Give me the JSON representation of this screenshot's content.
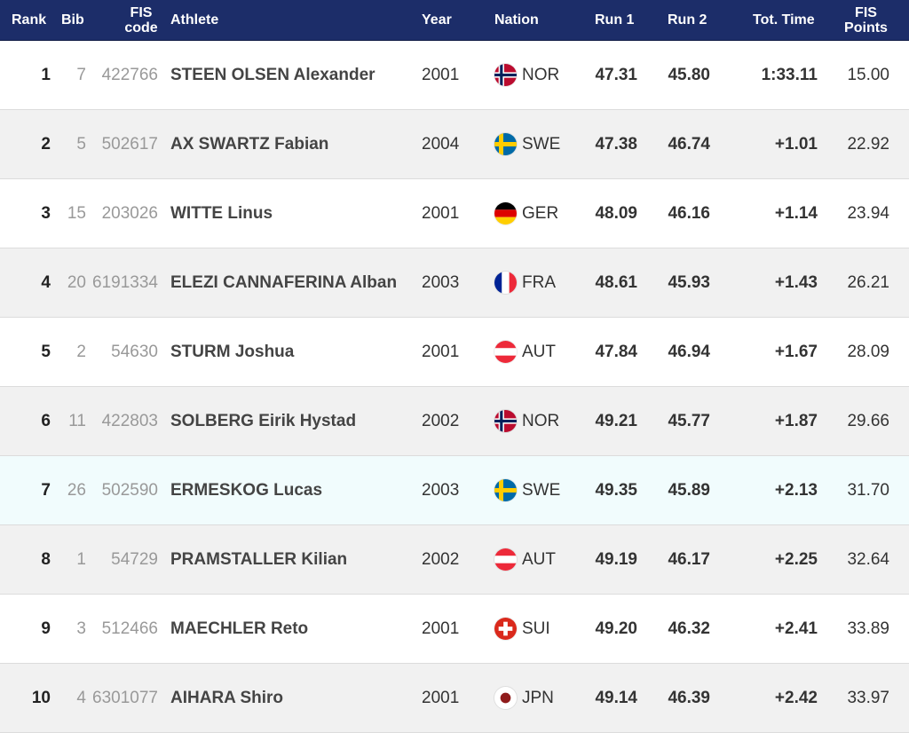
{
  "headers": {
    "rank": "Rank",
    "bib": "Bib",
    "fis_line1": "FIS",
    "fis_line2": "code",
    "athlete": "Athlete",
    "year": "Year",
    "nation": "Nation",
    "run1": "Run 1",
    "run2": "Run 2",
    "tot_time": "Tot. Time",
    "points_line1": "FIS",
    "points_line2": "Points"
  },
  "colors": {
    "header_bg": "#1c2d69",
    "highlight_row": "#f1fcfd"
  },
  "rows": [
    {
      "rank": "1",
      "bib": "7",
      "fis": "422766",
      "athlete": "STEEN OLSEN Alexander",
      "year": "2001",
      "nation": "NOR",
      "flag": "norway-flag-icon",
      "run1": "47.31",
      "run2": "45.80",
      "tot": "1:33.11",
      "points": "15.00"
    },
    {
      "rank": "2",
      "bib": "5",
      "fis": "502617",
      "athlete": "AX SWARTZ Fabian",
      "year": "2004",
      "nation": "SWE",
      "flag": "sweden-flag-icon",
      "run1": "47.38",
      "run2": "46.74",
      "tot": "+1.01",
      "points": "22.92"
    },
    {
      "rank": "3",
      "bib": "15",
      "fis": "203026",
      "athlete": "WITTE Linus",
      "year": "2001",
      "nation": "GER",
      "flag": "germany-flag-icon",
      "run1": "48.09",
      "run2": "46.16",
      "tot": "+1.14",
      "points": "23.94"
    },
    {
      "rank": "4",
      "bib": "20",
      "fis": "6191334",
      "athlete": "ELEZI CANNAFERINA Alban",
      "year": "2003",
      "nation": "FRA",
      "flag": "france-flag-icon",
      "run1": "48.61",
      "run2": "45.93",
      "tot": "+1.43",
      "points": "26.21"
    },
    {
      "rank": "5",
      "bib": "2",
      "fis": "54630",
      "athlete": "STURM Joshua",
      "year": "2001",
      "nation": "AUT",
      "flag": "austria-flag-icon",
      "run1": "47.84",
      "run2": "46.94",
      "tot": "+1.67",
      "points": "28.09"
    },
    {
      "rank": "6",
      "bib": "11",
      "fis": "422803",
      "athlete": "SOLBERG Eirik Hystad",
      "year": "2002",
      "nation": "NOR",
      "flag": "norway-flag-icon",
      "run1": "49.21",
      "run2": "45.77",
      "tot": "+1.87",
      "points": "29.66"
    },
    {
      "rank": "7",
      "bib": "26",
      "fis": "502590",
      "athlete": "ERMESKOG Lucas",
      "year": "2003",
      "nation": "SWE",
      "flag": "sweden-flag-icon",
      "run1": "49.35",
      "run2": "45.89",
      "tot": "+2.13",
      "points": "31.70"
    },
    {
      "rank": "8",
      "bib": "1",
      "fis": "54729",
      "athlete": "PRAMSTALLER Kilian",
      "year": "2002",
      "nation": "AUT",
      "flag": "austria-flag-icon",
      "run1": "49.19",
      "run2": "46.17",
      "tot": "+2.25",
      "points": "32.64"
    },
    {
      "rank": "9",
      "bib": "3",
      "fis": "512466",
      "athlete": "MAECHLER Reto",
      "year": "2001",
      "nation": "SUI",
      "flag": "switzerland-flag-icon",
      "run1": "49.20",
      "run2": "46.32",
      "tot": "+2.41",
      "points": "33.89"
    },
    {
      "rank": "10",
      "bib": "4",
      "fis": "6301077",
      "athlete": "AIHARA Shiro",
      "year": "2001",
      "nation": "JPN",
      "flag": "japan-flag-icon",
      "run1": "49.14",
      "run2": "46.39",
      "tot": "+2.42",
      "points": "33.97"
    }
  ]
}
